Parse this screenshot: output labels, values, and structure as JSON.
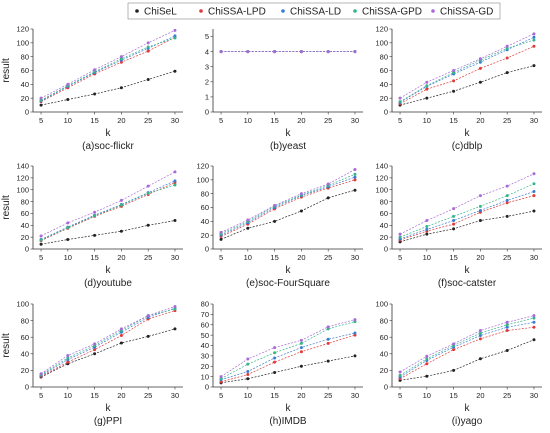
{
  "legend": {
    "placement": "top-center",
    "entries": [
      {
        "name": "ChiSeL",
        "color": "#222222"
      },
      {
        "name": "ChiSSA-LPD",
        "color": "#e03a3a"
      },
      {
        "name": "ChiSSA-LD",
        "color": "#3a7bd5"
      },
      {
        "name": "ChiSSA-GPD",
        "color": "#36b58a"
      },
      {
        "name": "ChiSSA-GD",
        "color": "#a86ad8"
      }
    ]
  },
  "chart_data": [
    {
      "type": "line",
      "caption": "(a)soc-flickr",
      "xlabel": "k",
      "ylabel": "result",
      "x": [
        5,
        10,
        15,
        20,
        25,
        30
      ],
      "ylim": [
        0,
        120
      ],
      "yticks": [
        0,
        20,
        40,
        60,
        80,
        100,
        120
      ],
      "series": [
        {
          "name": "ChiSeL",
          "values": [
            10,
            18,
            26,
            35,
            47,
            59
          ]
        },
        {
          "name": "ChiSSA-LPD",
          "values": [
            15,
            35,
            55,
            72,
            88,
            108
          ]
        },
        {
          "name": "ChiSSA-LD",
          "values": [
            16,
            37,
            57,
            75,
            92,
            110
          ]
        },
        {
          "name": "ChiSSA-GPD",
          "values": [
            17,
            38,
            58,
            77,
            94,
            107
          ]
        },
        {
          "name": "ChiSSA-GD",
          "values": [
            20,
            40,
            61,
            80,
            100,
            118
          ]
        }
      ]
    },
    {
      "type": "line",
      "caption": "(b)yeast",
      "xlabel": "k",
      "ylabel": "",
      "x": [
        5,
        10,
        15,
        20,
        25,
        30
      ],
      "ylim": [
        0,
        5.5
      ],
      "yticks": [
        0,
        1,
        2,
        3,
        4,
        5
      ],
      "series": [
        {
          "name": "ChiSeL",
          "values": [
            4,
            4,
            4,
            4,
            4,
            4
          ]
        },
        {
          "name": "ChiSSA-LPD",
          "values": [
            4,
            4,
            4,
            4,
            4,
            4
          ]
        },
        {
          "name": "ChiSSA-LD",
          "values": [
            4,
            4,
            4,
            4,
            4,
            4
          ]
        },
        {
          "name": "ChiSSA-GPD",
          "values": [
            4,
            4,
            4,
            4,
            4,
            4
          ]
        },
        {
          "name": "ChiSSA-GD",
          "values": [
            4,
            4,
            4,
            4,
            4,
            4
          ]
        }
      ]
    },
    {
      "type": "line",
      "caption": "(c)dblp",
      "xlabel": "k",
      "ylabel": "",
      "x": [
        5,
        10,
        15,
        20,
        25,
        30
      ],
      "ylim": [
        0,
        120
      ],
      "yticks": [
        0,
        20,
        40,
        60,
        80,
        100,
        120
      ],
      "series": [
        {
          "name": "ChiSeL",
          "values": [
            10,
            20,
            30,
            43,
            57,
            67
          ]
        },
        {
          "name": "ChiSSA-LPD",
          "values": [
            12,
            33,
            45,
            63,
            78,
            95
          ]
        },
        {
          "name": "ChiSSA-LD",
          "values": [
            14,
            37,
            55,
            72,
            90,
            108
          ]
        },
        {
          "name": "ChiSSA-GPD",
          "values": [
            15,
            38,
            57,
            75,
            92,
            104
          ]
        },
        {
          "name": "ChiSSA-GD",
          "values": [
            20,
            43,
            60,
            77,
            95,
            113
          ]
        }
      ]
    },
    {
      "type": "line",
      "caption": "(d)youtube",
      "xlabel": "k",
      "ylabel": "result",
      "x": [
        5,
        10,
        15,
        20,
        25,
        30
      ],
      "ylim": [
        0,
        140
      ],
      "yticks": [
        0,
        20,
        40,
        60,
        80,
        100,
        120,
        140
      ],
      "series": [
        {
          "name": "ChiSeL",
          "values": [
            8,
            16,
            23,
            30,
            40,
            48
          ]
        },
        {
          "name": "ChiSSA-LPD",
          "values": [
            14,
            35,
            55,
            72,
            92,
            112
          ]
        },
        {
          "name": "ChiSSA-LD",
          "values": [
            16,
            37,
            57,
            75,
            95,
            115
          ]
        },
        {
          "name": "ChiSSA-GPD",
          "values": [
            15,
            36,
            56,
            74,
            94,
            108
          ]
        },
        {
          "name": "ChiSSA-GD",
          "values": [
            22,
            44,
            62,
            82,
            106,
            130
          ]
        }
      ]
    },
    {
      "type": "line",
      "caption": "(e)soc-FourSquare",
      "xlabel": "k",
      "ylabel": "",
      "x": [
        5,
        10,
        15,
        20,
        25,
        30
      ],
      "ylim": [
        0,
        120
      ],
      "yticks": [
        0,
        20,
        40,
        60,
        80,
        100,
        120
      ],
      "series": [
        {
          "name": "ChiSeL",
          "values": [
            14,
            30,
            40,
            55,
            74,
            85
          ]
        },
        {
          "name": "ChiSSA-LPD",
          "values": [
            18,
            36,
            58,
            75,
            88,
            100
          ]
        },
        {
          "name": "ChiSSA-LD",
          "values": [
            20,
            38,
            60,
            77,
            90,
            104
          ]
        },
        {
          "name": "ChiSSA-GPD",
          "values": [
            22,
            40,
            62,
            78,
            92,
            108
          ]
        },
        {
          "name": "ChiSSA-GD",
          "values": [
            24,
            42,
            63,
            80,
            94,
            115
          ]
        }
      ]
    },
    {
      "type": "line",
      "caption": "(f)soc-catster",
      "xlabel": "k",
      "ylabel": "",
      "x": [
        5,
        10,
        15,
        20,
        25,
        30
      ],
      "ylim": [
        0,
        140
      ],
      "yticks": [
        0,
        20,
        40,
        60,
        80,
        100,
        120,
        140
      ],
      "series": [
        {
          "name": "ChiSeL",
          "values": [
            12,
            25,
            34,
            48,
            55,
            64
          ]
        },
        {
          "name": "ChiSSA-LPD",
          "values": [
            15,
            30,
            42,
            62,
            78,
            90
          ]
        },
        {
          "name": "ChiSSA-LD",
          "values": [
            17,
            33,
            48,
            65,
            82,
            97
          ]
        },
        {
          "name": "ChiSSA-GPD",
          "values": [
            20,
            38,
            55,
            72,
            90,
            110
          ]
        },
        {
          "name": "ChiSSA-GD",
          "values": [
            25,
            48,
            68,
            90,
            106,
            127
          ]
        }
      ]
    },
    {
      "type": "line",
      "caption": "(g)PPI",
      "xlabel": "k",
      "ylabel": "result",
      "x": [
        5,
        10,
        15,
        20,
        25,
        30
      ],
      "ylim": [
        0,
        100
      ],
      "yticks": [
        0,
        20,
        40,
        60,
        80,
        100
      ],
      "series": [
        {
          "name": "ChiSeL",
          "values": [
            12,
            28,
            40,
            53,
            61,
            70
          ]
        },
        {
          "name": "ChiSSA-LPD",
          "values": [
            13,
            30,
            45,
            62,
            82,
            92
          ]
        },
        {
          "name": "ChiSSA-LD",
          "values": [
            14,
            33,
            48,
            66,
            84,
            95
          ]
        },
        {
          "name": "ChiSSA-GPD",
          "values": [
            15,
            35,
            50,
            68,
            86,
            94
          ]
        },
        {
          "name": "ChiSSA-GD",
          "values": [
            16,
            38,
            52,
            70,
            86,
            97
          ]
        }
      ]
    },
    {
      "type": "line",
      "caption": "(h)IMDB",
      "xlabel": "k",
      "ylabel": "",
      "x": [
        5,
        10,
        15,
        20,
        25,
        30
      ],
      "ylim": [
        0,
        80
      ],
      "yticks": [
        0,
        10,
        20,
        30,
        40,
        50,
        60,
        70,
        80
      ],
      "series": [
        {
          "name": "ChiSeL",
          "values": [
            4,
            8,
            14,
            20,
            25,
            30
          ]
        },
        {
          "name": "ChiSSA-LPD",
          "values": [
            5,
            12,
            24,
            34,
            42,
            50
          ]
        },
        {
          "name": "ChiSSA-LD",
          "values": [
            7,
            15,
            28,
            38,
            46,
            52
          ]
        },
        {
          "name": "ChiSSA-GPD",
          "values": [
            8,
            22,
            33,
            42,
            56,
            63
          ]
        },
        {
          "name": "ChiSSA-GD",
          "values": [
            10,
            27,
            38,
            45,
            58,
            65
          ]
        }
      ]
    },
    {
      "type": "line",
      "caption": "(i)yago",
      "xlabel": "k",
      "ylabel": "",
      "x": [
        5,
        10,
        15,
        20,
        25,
        30
      ],
      "ylim": [
        0,
        100
      ],
      "yticks": [
        0,
        20,
        40,
        60,
        80,
        100
      ],
      "series": [
        {
          "name": "ChiSeL",
          "values": [
            8,
            13,
            20,
            34,
            44,
            57
          ]
        },
        {
          "name": "ChiSSA-LPD",
          "values": [
            10,
            28,
            45,
            58,
            68,
            72
          ]
        },
        {
          "name": "ChiSSA-LD",
          "values": [
            12,
            32,
            48,
            62,
            72,
            78
          ]
        },
        {
          "name": "ChiSSA-GPD",
          "values": [
            14,
            34,
            50,
            65,
            75,
            83
          ]
        },
        {
          "name": "ChiSSA-GD",
          "values": [
            18,
            37,
            52,
            68,
            78,
            86
          ]
        }
      ]
    }
  ]
}
